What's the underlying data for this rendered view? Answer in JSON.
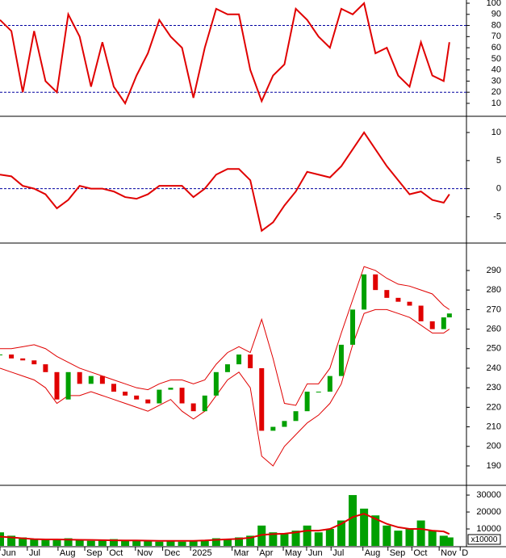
{
  "chart_data": [
    {
      "type": "line",
      "xlim": [
        0,
        82
      ],
      "ylim": [
        -0.9,
        102.9
      ],
      "yticks": [
        10,
        20,
        30,
        40,
        50,
        60,
        70,
        80,
        90,
        100
      ],
      "hlines": [
        20,
        80
      ],
      "hline_color": "#0000a0",
      "color": "#e00000",
      "x": [
        0,
        2,
        4,
        6,
        8,
        10,
        12,
        14,
        16,
        18,
        20,
        22,
        24,
        26,
        28,
        30,
        32,
        34,
        36,
        38,
        40,
        42,
        44,
        46,
        48,
        50,
        52,
        54,
        56,
        58,
        60,
        62,
        64,
        66,
        68,
        70,
        72,
        74,
        76,
        78,
        79
      ],
      "values": [
        85,
        75,
        20,
        75,
        30,
        20,
        90,
        70,
        25,
        65,
        25,
        10,
        35,
        55,
        85,
        70,
        60,
        15,
        60,
        95,
        90,
        90,
        40,
        12,
        35,
        45,
        95,
        85,
        70,
        60,
        95,
        90,
        100,
        55,
        60,
        35,
        25,
        65,
        35,
        30,
        65
      ]
    },
    {
      "type": "line",
      "xlim": [
        0,
        82
      ],
      "ylim": [
        -9.4,
        12.6
      ],
      "yticks": [
        10,
        5,
        0,
        -5
      ],
      "hlines": [
        0
      ],
      "hline_color": "#0000a0",
      "color": "#e00000",
      "x": [
        0,
        2,
        4,
        6,
        8,
        10,
        12,
        14,
        16,
        18,
        20,
        22,
        24,
        26,
        28,
        30,
        32,
        34,
        36,
        38,
        40,
        42,
        44,
        46,
        48,
        50,
        52,
        54,
        56,
        58,
        60,
        62,
        64,
        66,
        68,
        70,
        72,
        74,
        76,
        78,
        79
      ],
      "values": [
        2.5,
        2.2,
        0.5,
        0,
        -1,
        -3.5,
        -2,
        0.5,
        0,
        0,
        -0.5,
        -1.5,
        -1.8,
        -1,
        0.5,
        0.5,
        0.5,
        -1.5,
        0,
        2.5,
        3.5,
        3.5,
        1.5,
        -7.5,
        -6,
        -3,
        -0.5,
        3,
        2.5,
        2,
        4,
        7,
        10,
        7,
        4,
        1.5,
        -1,
        -0.5,
        -2,
        -2.5,
        -1
      ]
    },
    {
      "type": "candlestick",
      "xlim": [
        0,
        82
      ],
      "ylim": [
        180.9,
        303.2
      ],
      "yticks": [
        190,
        200,
        210,
        220,
        230,
        240,
        250,
        260,
        270,
        280,
        290
      ],
      "up_color": "#00a000",
      "down_color": "#e00000",
      "band_color": "#e00000",
      "x": [
        0,
        2,
        4,
        6,
        8,
        10,
        12,
        14,
        16,
        18,
        20,
        22,
        24,
        26,
        28,
        30,
        32,
        34,
        36,
        38,
        40,
        42,
        44,
        46,
        48,
        50,
        52,
        54,
        56,
        58,
        60,
        62,
        64,
        66,
        68,
        70,
        72,
        74,
        76,
        78,
        79
      ],
      "close": [
        247,
        245,
        244,
        242,
        238,
        224,
        238,
        232,
        236,
        232,
        228,
        226,
        224,
        222,
        229,
        230,
        222,
        218,
        226,
        238,
        242,
        247,
        240,
        208,
        210,
        213,
        218,
        228,
        228,
        236,
        252,
        270,
        288,
        280,
        276,
        274,
        272,
        264,
        260,
        266,
        268
      ],
      "upper_band": [
        250,
        250,
        251,
        252,
        250,
        246,
        243,
        240,
        238,
        236,
        234,
        232,
        230,
        229,
        232,
        234,
        234,
        232,
        234,
        242,
        248,
        251,
        248,
        265,
        245,
        222,
        221,
        232,
        232,
        240,
        258,
        275,
        292,
        290,
        286,
        283,
        282,
        280,
        278,
        272,
        270
      ],
      "lower_band": [
        240,
        238,
        236,
        234,
        230,
        222,
        226,
        226,
        228,
        226,
        224,
        222,
        220,
        218,
        221,
        224,
        218,
        214,
        218,
        226,
        234,
        238,
        230,
        195,
        190,
        200,
        206,
        212,
        216,
        222,
        232,
        252,
        268,
        270,
        270,
        268,
        266,
        262,
        258,
        258,
        260
      ]
    },
    {
      "type": "bar",
      "xlim": [
        0,
        82
      ],
      "ylim": [
        0,
        34800
      ],
      "yticks": [
        10000,
        20000,
        30000
      ],
      "unit_label": "x10000",
      "color": "#00a000",
      "ma_color": "#e00000",
      "x": [
        0,
        2,
        4,
        6,
        8,
        10,
        12,
        14,
        16,
        18,
        20,
        22,
        24,
        26,
        28,
        30,
        32,
        34,
        36,
        38,
        40,
        42,
        44,
        46,
        48,
        50,
        52,
        54,
        56,
        58,
        60,
        62,
        64,
        66,
        68,
        70,
        72,
        74,
        76,
        78,
        79
      ],
      "values": [
        8000,
        6000,
        5000,
        4000,
        3500,
        4000,
        4500,
        3500,
        3000,
        3500,
        4000,
        3000,
        3500,
        3000,
        2500,
        3000,
        2500,
        3000,
        3500,
        4500,
        4000,
        5000,
        6000,
        12000,
        8000,
        7000,
        9000,
        12000,
        8000,
        10000,
        15000,
        30000,
        22000,
        18000,
        12000,
        9000,
        10000,
        15000,
        9000,
        6000,
        5000
      ],
      "ma": [
        5500,
        5000,
        4500,
        4000,
        3800,
        3800,
        3700,
        3600,
        3500,
        3400,
        3300,
        3200,
        3200,
        3100,
        3000,
        3000,
        3000,
        3000,
        3200,
        3600,
        3900,
        4200,
        4800,
        6500,
        7000,
        7200,
        8000,
        9000,
        9000,
        10000,
        13000,
        17000,
        19000,
        16000,
        13000,
        11000,
        10000,
        10000,
        9000,
        8500,
        7000
      ],
      "xticks": [
        {
          "value": 0,
          "label": "Jun"
        },
        {
          "value": 4.8,
          "label": "Jul"
        },
        {
          "value": 10.2,
          "label": "Aug"
        },
        {
          "value": 14.9,
          "label": "Sep"
        },
        {
          "value": 18.9,
          "label": "Oct"
        },
        {
          "value": 23.8,
          "label": "Nov"
        },
        {
          "value": 28.6,
          "label": "Dec"
        },
        {
          "value": 33.5,
          "label": "2025"
        },
        {
          "value": 40.8,
          "label": "Mar"
        },
        {
          "value": 45.3,
          "label": "Apr"
        },
        {
          "value": 49.8,
          "label": "May"
        },
        {
          "value": 53.9,
          "label": "Jun"
        },
        {
          "value": 58.2,
          "label": "Jul"
        },
        {
          "value": 63.8,
          "label": "Aug"
        },
        {
          "value": 68.2,
          "label": "Sep"
        },
        {
          "value": 72.4,
          "label": "Oct"
        },
        {
          "value": 77.2,
          "label": "Nov"
        },
        {
          "value": 80.9,
          "label": "D"
        }
      ]
    }
  ]
}
